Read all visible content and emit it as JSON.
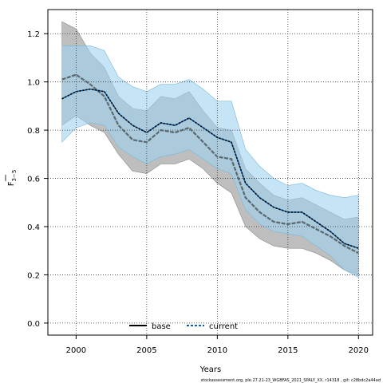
{
  "chart_data": {
    "type": "line",
    "xlabel": "Years",
    "ylabel": "F",
    "ylabel_subscript": "3−5",
    "xlim": [
      1998,
      2021
    ],
    "ylim": [
      -0.05,
      1.3
    ],
    "x_ticks": [
      2000,
      2005,
      2010,
      2015,
      2020
    ],
    "y_ticks": [
      0.0,
      0.2,
      0.4,
      0.6,
      0.8,
      1.0,
      1.2
    ],
    "grid": true,
    "legend_position": "bottom-left",
    "x": [
      1999,
      2000,
      2001,
      2002,
      2003,
      2004,
      2005,
      2006,
      2007,
      2008,
      2009,
      2010,
      2011,
      2012,
      2013,
      2014,
      2015,
      2016,
      2017,
      2018,
      2019,
      2020
    ],
    "series": [
      {
        "name": "base",
        "line_color": "#5a6870",
        "band_color": "#a8a8a8",
        "values": [
          1.01,
          1.03,
          0.99,
          0.94,
          0.82,
          0.76,
          0.75,
          0.8,
          0.79,
          0.81,
          0.75,
          0.69,
          0.68,
          0.52,
          0.46,
          0.42,
          0.41,
          0.42,
          0.39,
          0.36,
          0.32,
          0.29
        ],
        "lower": [
          0.82,
          0.86,
          0.82,
          0.79,
          0.7,
          0.63,
          0.62,
          0.66,
          0.66,
          0.68,
          0.64,
          0.58,
          0.54,
          0.4,
          0.35,
          0.32,
          0.31,
          0.31,
          0.29,
          0.26,
          0.22,
          0.2
        ],
        "upper": [
          1.25,
          1.22,
          1.12,
          1.06,
          0.94,
          0.89,
          0.88,
          0.94,
          0.93,
          0.96,
          0.88,
          0.81,
          0.8,
          0.64,
          0.58,
          0.53,
          0.51,
          0.52,
          0.49,
          0.46,
          0.43,
          0.44
        ]
      },
      {
        "name": "current",
        "line_color": "#000000",
        "band_color": "#9fd2ef",
        "values": [
          0.93,
          0.96,
          0.97,
          0.96,
          0.87,
          0.82,
          0.79,
          0.83,
          0.82,
          0.85,
          0.81,
          0.77,
          0.75,
          0.58,
          0.52,
          0.48,
          0.46,
          0.46,
          0.42,
          0.38,
          0.33,
          0.31
        ],
        "lower": [
          0.75,
          0.81,
          0.83,
          0.82,
          0.73,
          0.69,
          0.66,
          0.69,
          0.7,
          0.72,
          0.68,
          0.64,
          0.62,
          0.47,
          0.41,
          0.38,
          0.37,
          0.36,
          0.32,
          0.28,
          0.22,
          0.19
        ],
        "upper": [
          1.15,
          1.15,
          1.15,
          1.13,
          1.02,
          0.98,
          0.96,
          0.99,
          0.99,
          1.01,
          0.97,
          0.92,
          0.92,
          0.72,
          0.65,
          0.6,
          0.57,
          0.58,
          0.55,
          0.53,
          0.52,
          0.53
        ]
      }
    ]
  },
  "footnote": "stockassessment.org, ple.27.21-23_WGBFAS_2021_SPALY_XX, r14318 , git: c28bdc2a44ad"
}
